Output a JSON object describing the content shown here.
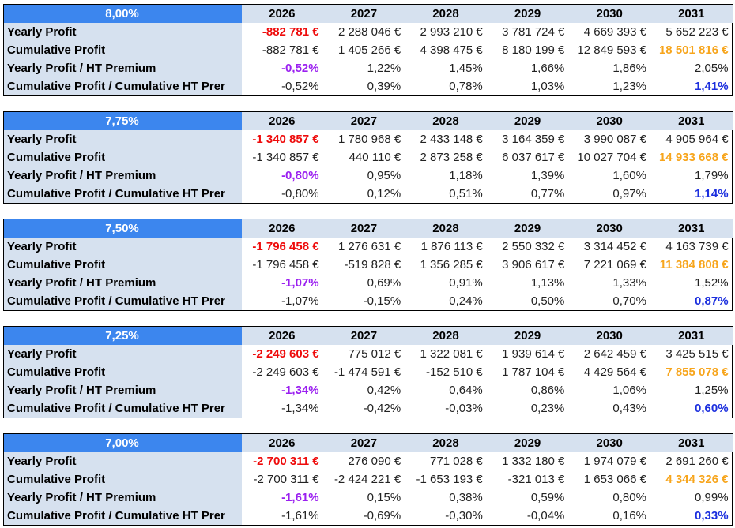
{
  "years": [
    "2026",
    "2027",
    "2028",
    "2029",
    "2030",
    "2031"
  ],
  "row_labels": [
    "Yearly Profit",
    "Cumulative Profit",
    "Yearly Profit / HT Premium",
    "Cumulative Profit / Cumulative HT Prer"
  ],
  "colors": {
    "header_blue": "#3c86ee",
    "label_bg": "#d6e1ef",
    "red": "#ee0b0b",
    "purple": "#9a1ff0",
    "orange": "#f7a51c",
    "blue": "#1c2fde"
  },
  "scenarios": [
    {
      "rate": "8,00%",
      "yearly": [
        "-882 781 €",
        "2 288 046 €",
        "2 993 210 €",
        "3 781 724 €",
        "4 669 393 €",
        "5 652 223 €"
      ],
      "cumulative": [
        "-882 781 €",
        "1 405 266 €",
        "4 398 475 €",
        "8 180 199 €",
        "12 849 593 €",
        "18 501 816 €"
      ],
      "yearly_ratio": [
        "-0,52%",
        "1,22%",
        "1,45%",
        "1,66%",
        "1,86%",
        "2,05%"
      ],
      "cumulative_ratio": [
        "-0,52%",
        "0,39%",
        "0,78%",
        "1,03%",
        "1,23%",
        "1,41%"
      ]
    },
    {
      "rate": "7,75%",
      "yearly": [
        "-1 340 857 €",
        "1 780 968 €",
        "2 433 148 €",
        "3 164 359 €",
        "3 990 087 €",
        "4 905 964 €"
      ],
      "cumulative": [
        "-1 340 857 €",
        "440 110 €",
        "2 873 258 €",
        "6 037 617 €",
        "10 027 704 €",
        "14 933 668 €"
      ],
      "yearly_ratio": [
        "-0,80%",
        "0,95%",
        "1,18%",
        "1,39%",
        "1,60%",
        "1,79%"
      ],
      "cumulative_ratio": [
        "-0,80%",
        "0,12%",
        "0,51%",
        "0,77%",
        "0,97%",
        "1,14%"
      ]
    },
    {
      "rate": "7,50%",
      "yearly": [
        "-1 796 458 €",
        "1 276 631 €",
        "1 876 113 €",
        "2 550 332 €",
        "3 314 452 €",
        "4 163 739 €"
      ],
      "cumulative": [
        "-1 796 458 €",
        "-519 828 €",
        "1 356 285 €",
        "3 906 617 €",
        "7 221 069 €",
        "11 384 808 €"
      ],
      "yearly_ratio": [
        "-1,07%",
        "0,69%",
        "0,91%",
        "1,13%",
        "1,33%",
        "1,52%"
      ],
      "cumulative_ratio": [
        "-1,07%",
        "-0,15%",
        "0,24%",
        "0,50%",
        "0,70%",
        "0,87%"
      ]
    },
    {
      "rate": "7,25%",
      "yearly": [
        "-2 249 603 €",
        "775 012 €",
        "1 322 081 €",
        "1 939 614 €",
        "2 642 459 €",
        "3 425 515 €"
      ],
      "cumulative": [
        "-2 249 603 €",
        "-1 474 591 €",
        "-152 510 €",
        "1 787 104 €",
        "4 429 564 €",
        "7 855 078 €"
      ],
      "yearly_ratio": [
        "-1,34%",
        "0,42%",
        "0,64%",
        "0,86%",
        "1,06%",
        "1,25%"
      ],
      "cumulative_ratio": [
        "-1,34%",
        "-0,42%",
        "-0,03%",
        "0,23%",
        "0,43%",
        "0,60%"
      ]
    },
    {
      "rate": "7,00%",
      "yearly": [
        "-2 700 311 €",
        "276 090 €",
        "771 028 €",
        "1 332 180 €",
        "1 974 079 €",
        "2 691 260 €"
      ],
      "cumulative": [
        "-2 700 311 €",
        "-2 424 221 €",
        "-1 653 193 €",
        "-321 013 €",
        "1 653 066 €",
        "4 344 326 €"
      ],
      "yearly_ratio": [
        "-1,61%",
        "0,15%",
        "0,38%",
        "0,59%",
        "0,80%",
        "0,99%"
      ],
      "cumulative_ratio": [
        "-1,61%",
        "-0,69%",
        "-0,30%",
        "-0,04%",
        "0,16%",
        "0,33%"
      ]
    }
  ]
}
